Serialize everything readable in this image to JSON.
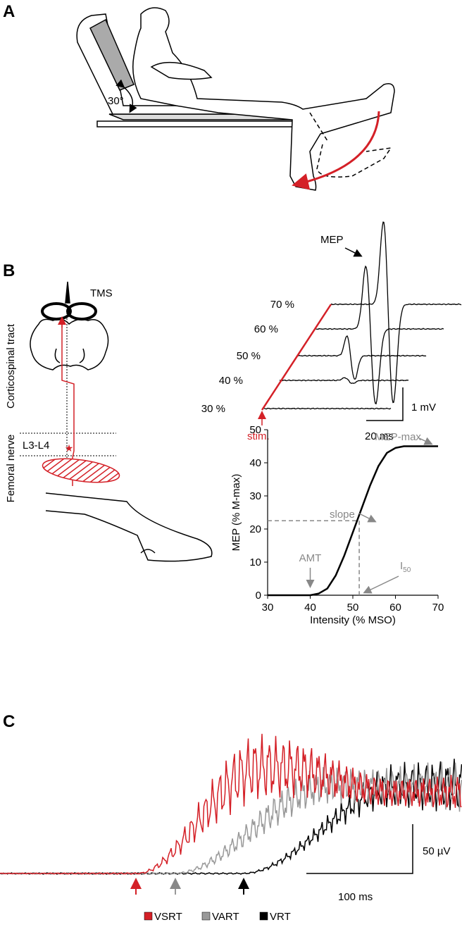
{
  "panels": {
    "A": {
      "label": "A",
      "angle_label": "30°"
    },
    "B": {
      "label": "B",
      "tms": "TMS",
      "tract": "Corticospinal tract",
      "level": "L3-L4",
      "nerve": "Femoral nerve",
      "annotation": "MEP",
      "intensities": [
        "70 %",
        "60 %",
        "50 %",
        "40 %",
        "30 %"
      ],
      "stim": "stim.",
      "scale_y": "1 mV",
      "scale_x": "20 ms"
    },
    "C": {
      "label": "C",
      "scale_y": "50 µV",
      "scale_x": "100 ms",
      "legend": [
        {
          "name": "VSRT",
          "color": "#d42027"
        },
        {
          "name": "VART",
          "color": "#999999"
        },
        {
          "name": "VRT",
          "color": "#000000"
        }
      ]
    }
  },
  "chart_data": {
    "type": "line",
    "xlabel": "Intensity (% MSO)",
    "ylabel": "MEP (% M-max)",
    "x": [
      30,
      40,
      42,
      44,
      46,
      48,
      50,
      52,
      54,
      56,
      58,
      60,
      62,
      64,
      70
    ],
    "series": [
      {
        "color": "#000000",
        "values": [
          0,
          0,
          0.5,
          2,
          6,
          12,
          19,
          26,
          33,
          39,
          43,
          44.5,
          45,
          45,
          45
        ]
      }
    ],
    "xlim": [
      30,
      70
    ],
    "ylim": [
      0,
      50
    ],
    "xticks": [
      30,
      40,
      50,
      60,
      70
    ],
    "yticks": [
      0,
      10,
      20,
      30,
      40,
      50
    ],
    "markers": {
      "amt": 40,
      "i50": 51.5,
      "half_max": 22.5
    },
    "annotations": {
      "max": "MEP-max",
      "slope": "slope",
      "amt": "AMT",
      "i50": "I",
      "i50_sub": "50"
    }
  }
}
